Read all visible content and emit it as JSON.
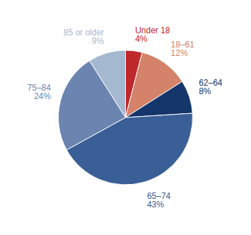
{
  "chart_data": {
    "type": "pie",
    "categories": [
      "Under 18",
      "18–61",
      "62–64",
      "65–74",
      "75–84",
      "85 or older"
    ],
    "values": [
      4,
      12,
      8,
      43,
      24,
      9
    ],
    "value_labels": [
      "4%",
      "12%",
      "8%",
      "43%",
      "24%",
      "9%"
    ],
    "colors": [
      "#c0292b",
      "#d4826a",
      "#15366b",
      "#3a5f96",
      "#6b84b0",
      "#a4b8d0"
    ],
    "data_labels": true
  }
}
